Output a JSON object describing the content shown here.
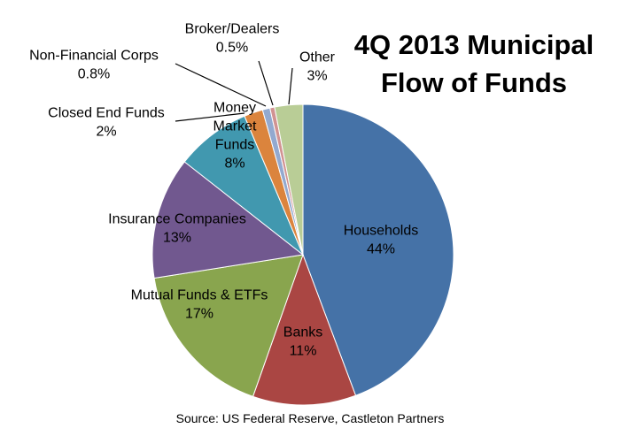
{
  "chart_data": {
    "type": "pie",
    "title_lines": [
      "4Q 2013 Municipal",
      "Flow of Funds"
    ],
    "source": "Source: US Federal Reserve, Castleton Partners",
    "slices": [
      {
        "label_lines": [
          "Households"
        ],
        "pct_text": "44%",
        "value": 44.0,
        "color": "#4572A7"
      },
      {
        "label_lines": [
          "Banks"
        ],
        "pct_text": "11%",
        "value": 11.0,
        "color": "#AA4643"
      },
      {
        "label_lines": [
          "Mutual Funds & ETFs"
        ],
        "pct_text": "17%",
        "value": 17.0,
        "color": "#89A54E"
      },
      {
        "label_lines": [
          "Insurance Companies"
        ],
        "pct_text": "13%",
        "value": 13.0,
        "color": "#71588F"
      },
      {
        "label_lines": [
          "Money",
          "Market",
          "Funds"
        ],
        "pct_text": "8%",
        "value": 8.0,
        "color": "#4198AF"
      },
      {
        "label_lines": [
          "Closed End Funds"
        ],
        "pct_text": "2%",
        "value": 2.0,
        "color": "#DB843D"
      },
      {
        "label_lines": [
          "Non-Financial Corps"
        ],
        "pct_text": "0.8%",
        "value": 0.8,
        "color": "#93A9CF"
      },
      {
        "label_lines": [
          "Broker/Dealers"
        ],
        "pct_text": "0.5%",
        "value": 0.5,
        "color": "#D19392"
      },
      {
        "label_lines": [
          "Other"
        ],
        "pct_text": "3%",
        "value": 3.0,
        "color": "#B9CD96"
      }
    ]
  }
}
